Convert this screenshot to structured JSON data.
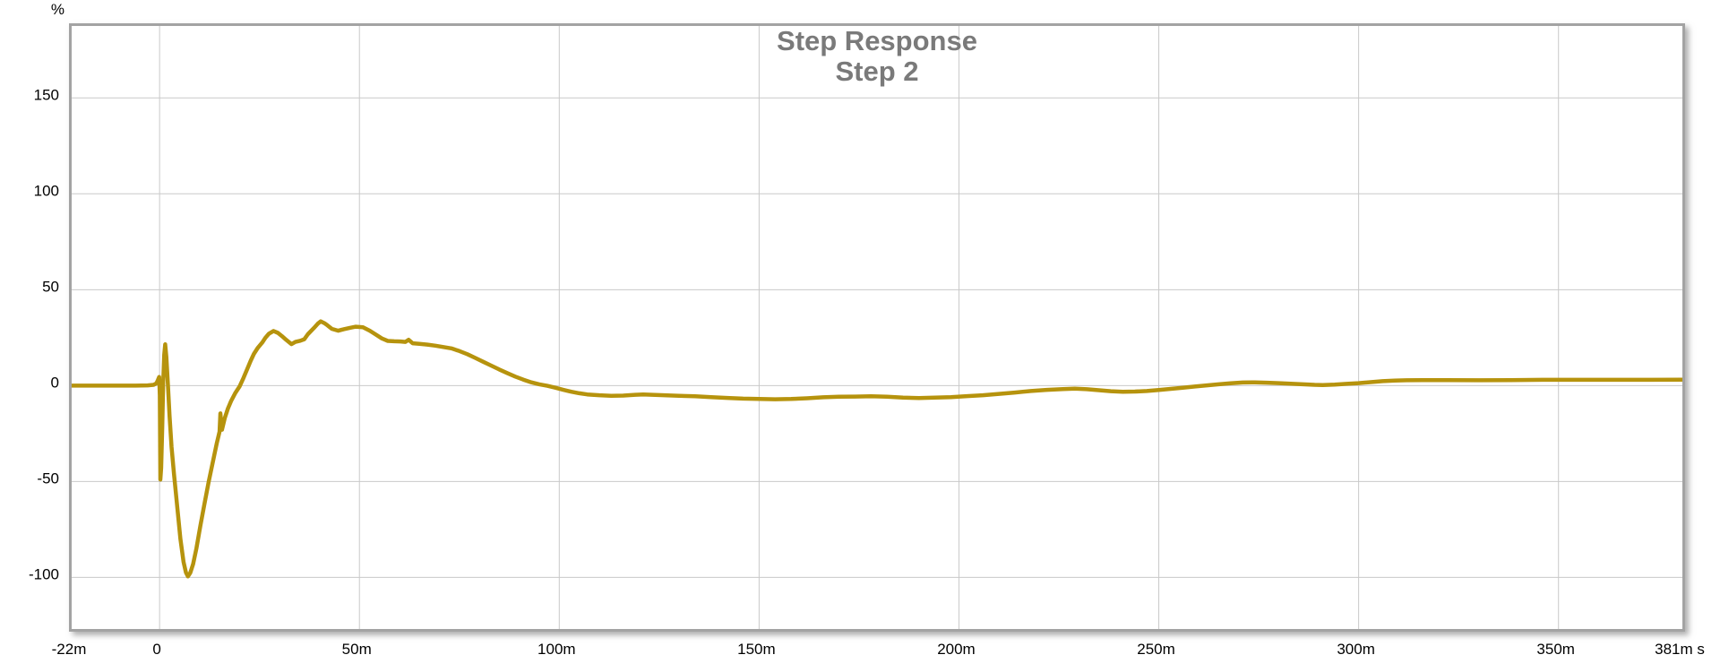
{
  "chart_data": {
    "type": "line",
    "title": "Step Response",
    "subtitle": "Step 2",
    "y_unit": "%",
    "x_unit": "s",
    "x_tick_values": [
      -22,
      0,
      50,
      100,
      150,
      200,
      250,
      300,
      350,
      381
    ],
    "x_tick_labels": [
      "-22m",
      "0",
      "50m",
      "100m",
      "150m",
      "200m",
      "250m",
      "300m",
      "350m",
      "381m"
    ],
    "y_tick_values": [
      150,
      100,
      50,
      0,
      -50,
      -100
    ],
    "y_tick_labels": [
      "150",
      "100",
      "50",
      "0",
      "-50",
      "-100"
    ],
    "x_range_ms": [
      -22,
      381
    ],
    "y_range_pct": [
      -126.9,
      187.5
    ],
    "grid": true,
    "legend": "none",
    "line_color": "#B6930D",
    "grid_color": "#c9c9c9",
    "frame_color": "#a3a3a3",
    "title_color": "#7a7a7a",
    "series": [
      {
        "name": "Step 2",
        "points_t_ms_pct": [
          [
            -22,
            0
          ],
          [
            -12,
            0
          ],
          [
            -6,
            0
          ],
          [
            -3,
            0.1
          ],
          [
            -1.5,
            0.4
          ],
          [
            -0.8,
            1.2
          ],
          [
            -0.4,
            3
          ],
          [
            -0.1,
            4.5
          ],
          [
            0.05,
            -5
          ],
          [
            0.2,
            -49
          ],
          [
            0.4,
            -43
          ],
          [
            0.65,
            -22
          ],
          [
            0.9,
            2
          ],
          [
            1.15,
            16
          ],
          [
            1.4,
            21.5
          ],
          [
            1.7,
            15
          ],
          [
            2.1,
            0
          ],
          [
            2.5,
            -16
          ],
          [
            3,
            -32
          ],
          [
            3.6,
            -46
          ],
          [
            4.4,
            -63
          ],
          [
            5.2,
            -80
          ],
          [
            6,
            -92
          ],
          [
            6.6,
            -97.5
          ],
          [
            7.1,
            -99.5
          ],
          [
            7.7,
            -97.5
          ],
          [
            8.4,
            -93
          ],
          [
            9.2,
            -85
          ],
          [
            10.2,
            -73
          ],
          [
            11.2,
            -62
          ],
          [
            12.3,
            -50
          ],
          [
            13.3,
            -40
          ],
          [
            14.3,
            -30
          ],
          [
            15,
            -24
          ],
          [
            15.2,
            -14.5
          ],
          [
            15.6,
            -23
          ],
          [
            16.3,
            -17
          ],
          [
            17.1,
            -12
          ],
          [
            17.9,
            -8
          ],
          [
            18.9,
            -4
          ],
          [
            20,
            -0.5
          ],
          [
            21,
            4
          ],
          [
            21.8,
            8
          ],
          [
            22.8,
            13
          ],
          [
            23.6,
            16.5
          ],
          [
            24.5,
            19.5
          ],
          [
            25.7,
            22.5
          ],
          [
            26.5,
            25
          ],
          [
            27.3,
            27
          ],
          [
            28.5,
            28.5
          ],
          [
            29.6,
            27.5
          ],
          [
            30.6,
            25.8
          ],
          [
            31.7,
            23.8
          ],
          [
            33,
            21.6
          ],
          [
            34,
            22.8
          ],
          [
            35.2,
            23.4
          ],
          [
            36.2,
            24.2
          ],
          [
            37.1,
            26.8
          ],
          [
            38.6,
            30
          ],
          [
            39.6,
            32.3
          ],
          [
            40.3,
            33.5
          ],
          [
            41.2,
            32.6
          ],
          [
            42,
            31.4
          ],
          [
            43.1,
            29.6
          ],
          [
            44.7,
            28.6
          ],
          [
            46.1,
            29.4
          ],
          [
            47.6,
            30.1
          ],
          [
            49.1,
            30.7
          ],
          [
            50.9,
            30.4
          ],
          [
            52.6,
            28.6
          ],
          [
            54.1,
            26.6
          ],
          [
            55.6,
            24.6
          ],
          [
            57.1,
            23.3
          ],
          [
            58.7,
            23.1
          ],
          [
            60.3,
            23
          ],
          [
            61.5,
            22.8
          ],
          [
            62.3,
            23.9
          ],
          [
            63.3,
            22.1
          ],
          [
            65,
            21.8
          ],
          [
            67,
            21.4
          ],
          [
            69,
            20.8
          ],
          [
            71,
            20.1
          ],
          [
            73,
            19.4
          ],
          [
            75,
            18
          ],
          [
            77,
            16.4
          ],
          [
            79,
            14.4
          ],
          [
            81,
            12.4
          ],
          [
            83,
            10.4
          ],
          [
            85,
            8.4
          ],
          [
            87,
            6.5
          ],
          [
            89,
            4.7
          ],
          [
            91,
            3.1
          ],
          [
            93,
            1.7
          ],
          [
            95,
            0.7
          ],
          [
            97,
            -0.1
          ],
          [
            99,
            -1.1
          ],
          [
            101,
            -2.2
          ],
          [
            103,
            -3.2
          ],
          [
            105,
            -4
          ],
          [
            107,
            -4.6
          ],
          [
            110,
            -5
          ],
          [
            113,
            -5.3
          ],
          [
            116,
            -5.2
          ],
          [
            119,
            -4.8
          ],
          [
            121,
            -4.6
          ],
          [
            124,
            -4.9
          ],
          [
            127,
            -5.1
          ],
          [
            130,
            -5.3
          ],
          [
            134,
            -5.6
          ],
          [
            138,
            -6
          ],
          [
            142,
            -6.4
          ],
          [
            146,
            -6.8
          ],
          [
            150,
            -7
          ],
          [
            154,
            -7.1
          ],
          [
            158,
            -7
          ],
          [
            162,
            -6.6
          ],
          [
            166,
            -6.1
          ],
          [
            170,
            -5.8
          ],
          [
            174,
            -5.7
          ],
          [
            178,
            -5.6
          ],
          [
            182,
            -5.8
          ],
          [
            186,
            -6.3
          ],
          [
            190,
            -6.5
          ],
          [
            194,
            -6.3
          ],
          [
            198,
            -6
          ],
          [
            202,
            -5.5
          ],
          [
            206,
            -5
          ],
          [
            210,
            -4.3
          ],
          [
            214,
            -3.6
          ],
          [
            218,
            -2.8
          ],
          [
            222,
            -2.2
          ],
          [
            226,
            -1.8
          ],
          [
            229,
            -1.6
          ],
          [
            232,
            -1.9
          ],
          [
            235,
            -2.4
          ],
          [
            238,
            -2.9
          ],
          [
            241,
            -3.2
          ],
          [
            244,
            -3.1
          ],
          [
            247,
            -2.8
          ],
          [
            250,
            -2.3
          ],
          [
            253,
            -1.7
          ],
          [
            256,
            -1.1
          ],
          [
            259,
            -0.5
          ],
          [
            262,
            0.1
          ],
          [
            265,
            0.7
          ],
          [
            268,
            1.2
          ],
          [
            271,
            1.6
          ],
          [
            274,
            1.7
          ],
          [
            277,
            1.5
          ],
          [
            280,
            1.3
          ],
          [
            283,
            1
          ],
          [
            286,
            0.7
          ],
          [
            289,
            0.4
          ],
          [
            291,
            0.3
          ],
          [
            294,
            0.5
          ],
          [
            297,
            0.9
          ],
          [
            300,
            1.3
          ],
          [
            303,
            1.8
          ],
          [
            306,
            2.3
          ],
          [
            309,
            2.6
          ],
          [
            312,
            2.8
          ],
          [
            316,
            2.9
          ],
          [
            322,
            2.9
          ],
          [
            330,
            2.8
          ],
          [
            338,
            2.9
          ],
          [
            346,
            3
          ],
          [
            355,
            3
          ],
          [
            365,
            3
          ],
          [
            373,
            3
          ],
          [
            381,
            3.1
          ]
        ]
      }
    ]
  }
}
